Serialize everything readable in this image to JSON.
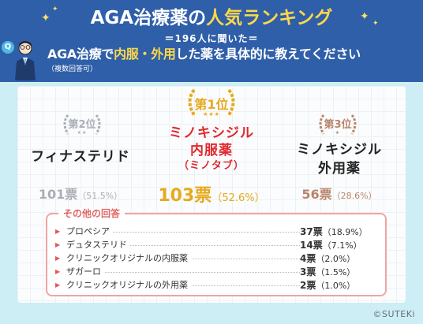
{
  "header": {
    "title_part1": "AGA治療薬の",
    "title_part2": "人気ランキング",
    "survey_line": "＝196人に聞いた＝",
    "question_prefix": "AGA治療で",
    "question_highlight": "内服・外用",
    "question_suffix": "した薬を具体的に教えてください",
    "note": "（複数回答可）",
    "q_badge": "Q"
  },
  "ranking": [
    {
      "rank_label": "第2位",
      "name_line1": "フィナステリド",
      "name_line2": "",
      "name_line3": "",
      "votes": "101票",
      "pct": "（51.5%）",
      "count": 101,
      "percent": 51.5,
      "color": "#a9aeb5"
    },
    {
      "rank_label": "第1位",
      "name_line1": "ミノキシジル",
      "name_line2": "内服薬",
      "name_line3": "（ミノタブ）",
      "votes": "103票",
      "pct": "（52.6%）",
      "count": 103,
      "percent": 52.6,
      "color": "#e6aa1e"
    },
    {
      "rank_label": "第3位",
      "name_line1": "ミノキシジル",
      "name_line2": "外用薬",
      "name_line3": "",
      "votes": "56票",
      "pct": "（28.6%）",
      "count": 56,
      "percent": 28.6,
      "color": "#b9836a"
    }
  ],
  "others": {
    "title": "その他の回答",
    "items": [
      {
        "label": "プロペシア",
        "votes": "37票",
        "pct": "（18.9%）"
      },
      {
        "label": "デュタステリド",
        "votes": "14票",
        "pct": "（7.1%）"
      },
      {
        "label": "クリニックオリジナルの内服薬",
        "votes": "4票",
        "pct": "（2.0%）"
      },
      {
        "label": "ザガーロ",
        "votes": "3票",
        "pct": "（1.5%）"
      },
      {
        "label": "クリニックオリジナルの外用薬",
        "votes": "2票",
        "pct": "（1.0%）"
      }
    ]
  },
  "credit": "©SUTEKi",
  "colors": {
    "header_bg": "#2f5fa8",
    "accent_yellow": "#ffd84a",
    "rank1_text": "#e0282e",
    "page_bg": "#cdeef5"
  },
  "icons": {
    "sparkle": "sparkle-icon",
    "person": "person-icon",
    "wreath": "laurel-wreath-icon",
    "bullet": "triangle-bullet-icon"
  }
}
